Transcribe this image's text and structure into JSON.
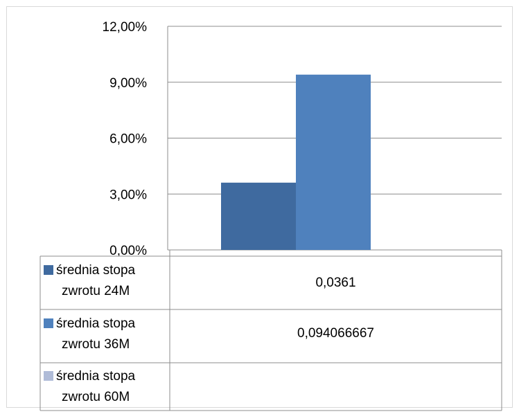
{
  "chart_data": {
    "type": "bar",
    "categories": [
      ""
    ],
    "series": [
      {
        "name": "średnia stopa zwrotu 24M",
        "name_lines": [
          "średnia stopa",
          "zwrotu 24M"
        ],
        "values": [
          0.0361
        ],
        "value_text": "0,0361",
        "color": "#3f6a9f"
      },
      {
        "name": "średnia stopa zwrotu 36M",
        "name_lines": [
          "średnia stopa",
          "zwrotu 36M"
        ],
        "values": [
          0.094066667
        ],
        "value_text": "0,094066667",
        "color": "#4f81bd"
      },
      {
        "name": "średnia stopa zwrotu 60M",
        "name_lines": [
          "średnia stopa",
          "zwrotu 60M"
        ],
        "values": [
          null
        ],
        "value_text": "",
        "color": "#b0bcd8"
      }
    ],
    "yticks": [
      "0,00%",
      "3,00%",
      "6,00%",
      "9,00%",
      "12,00%"
    ],
    "ylim": [
      0,
      0.12
    ],
    "grid": true,
    "legend": "data-table-below"
  }
}
